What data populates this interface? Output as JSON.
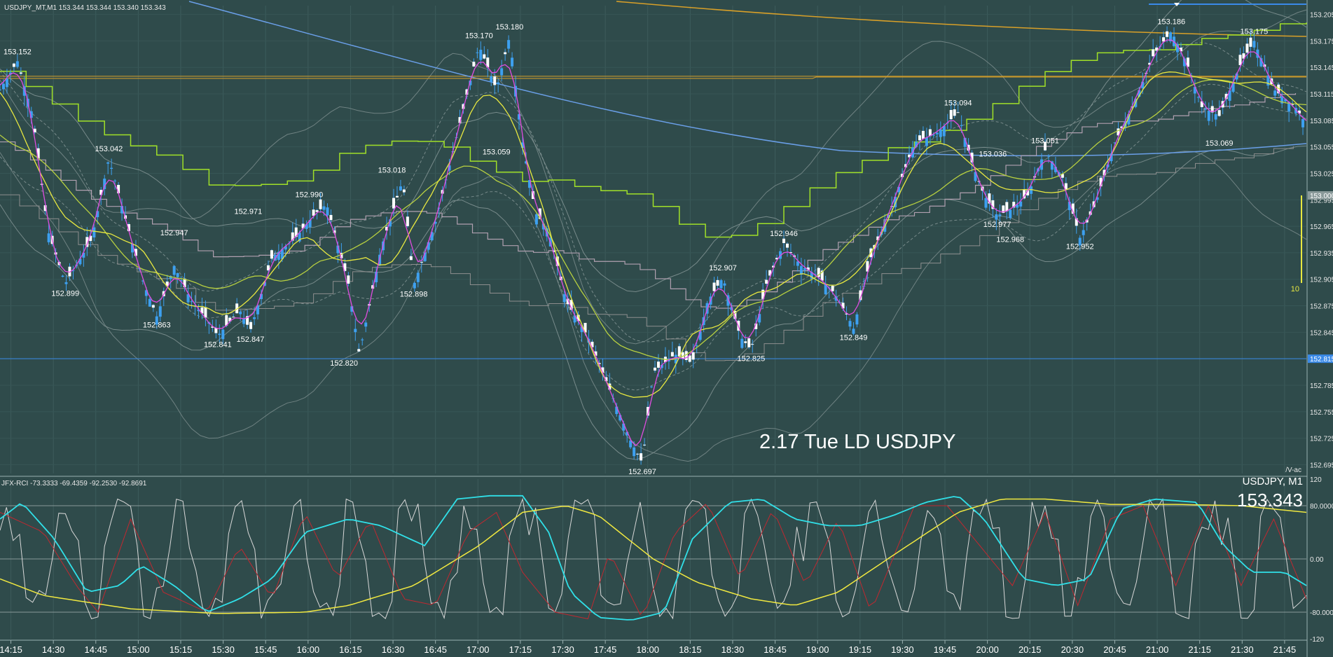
{
  "header": {
    "symbol_info": "USDJPY_MT,M1  153.344 153.344 153.340 153.343"
  },
  "watermark": "2.17 Tue LD USDJPY",
  "indicator": {
    "label": "JFX-RCI -73.3333 -69.4359 -92.2530 -92.8691",
    "symbol_tf": "USDJPY, M1",
    "last_price": "153.343",
    "small_tag": "/V-ac"
  },
  "price_tags": {
    "current": "153.000",
    "line": "152.815",
    "bar_count": "10"
  },
  "colors": {
    "background": "#2f4b4b",
    "candle": "#3da0f0",
    "ema_short": "#e04ce0",
    "ema_mid": "#000000",
    "ma_yellow": "#e8e840",
    "ma_olive": "#b8d040",
    "ma_blue": "#6a9fe8",
    "ma_orange": "#d9a028",
    "step_green": "#a0e028",
    "step_gray": "#b0a0b0",
    "band_gray": "#8a9a9a",
    "rci_white": "#d8d8d8",
    "rci_cyan": "#30e0e8",
    "rci_yellow": "#f0e840",
    "rci_red": "#c02830"
  },
  "chart_data": {
    "type": "candlestick",
    "title": "",
    "ylim": [
      152.685,
      153.215
    ],
    "y_ticks": [
      "153.205",
      "153.175",
      "153.145",
      "153.115",
      "153.085",
      "153.055",
      "153.025",
      "152.995",
      "152.965",
      "152.935",
      "152.905",
      "152.875",
      "152.845",
      "152.815",
      "152.785",
      "152.755",
      "152.725",
      "152.695"
    ],
    "x_ticks": [
      "14:15",
      "14:30",
      "14:45",
      "15:00",
      "15:15",
      "15:30",
      "15:45",
      "16:00",
      "16:15",
      "16:30",
      "16:45",
      "17:00",
      "17:15",
      "17:30",
      "17:45",
      "18:00",
      "18:15",
      "18:30",
      "18:45",
      "19:00",
      "19:15",
      "19:30",
      "19:45",
      "20:00",
      "20:15",
      "20:30",
      "20:45",
      "21:00",
      "21:15",
      "21:30",
      "21:45"
    ],
    "close_path": [
      [
        0,
        153.12
      ],
      [
        8,
        153.152
      ],
      [
        15,
        153.09
      ],
      [
        22,
        152.96
      ],
      [
        30,
        152.9
      ],
      [
        42,
        152.95
      ],
      [
        50,
        153.042
      ],
      [
        58,
        152.97
      ],
      [
        66,
        152.9
      ],
      [
        72,
        152.863
      ],
      [
        80,
        152.92
      ],
      [
        88,
        152.88
      ],
      [
        95,
        152.86
      ],
      [
        100,
        152.841
      ],
      [
        110,
        152.87
      ],
      [
        115,
        152.847
      ],
      [
        125,
        152.93
      ],
      [
        135,
        152.95
      ],
      [
        145,
        152.98
      ],
      [
        150,
        152.99
      ],
      [
        160,
        152.9
      ],
      [
        165,
        152.82
      ],
      [
        175,
        152.94
      ],
      [
        185,
        153.018
      ],
      [
        190,
        152.898
      ],
      [
        200,
        152.97
      ],
      [
        210,
        153.07
      ],
      [
        220,
        153.17
      ],
      [
        228,
        153.12
      ],
      [
        234,
        153.18
      ],
      [
        240,
        153.06
      ],
      [
        246,
        152.98
      ],
      [
        252,
        152.96
      ],
      [
        260,
        152.88
      ],
      [
        270,
        152.84
      ],
      [
        280,
        152.78
      ],
      [
        290,
        152.72
      ],
      [
        295,
        152.697
      ],
      [
        300,
        152.8
      ],
      [
        310,
        152.82
      ],
      [
        318,
        152.81
      ],
      [
        325,
        152.88
      ],
      [
        332,
        152.907
      ],
      [
        340,
        152.84
      ],
      [
        345,
        152.825
      ],
      [
        352,
        152.9
      ],
      [
        360,
        152.946
      ],
      [
        368,
        152.92
      ],
      [
        375,
        152.91
      ],
      [
        383,
        152.89
      ],
      [
        390,
        152.86
      ],
      [
        392,
        152.849
      ],
      [
        400,
        152.93
      ],
      [
        410,
        152.99
      ],
      [
        420,
        153.06
      ],
      [
        430,
        153.07
      ],
      [
        440,
        153.094
      ],
      [
        446,
        153.04
      ],
      [
        452,
        153.0
      ],
      [
        458,
        152.977
      ],
      [
        465,
        152.985
      ],
      [
        472,
        153.0
      ],
      [
        480,
        153.051
      ],
      [
        488,
        153.02
      ],
      [
        496,
        152.952
      ],
      [
        503,
        152.99
      ],
      [
        512,
        153.06
      ],
      [
        520,
        153.1
      ],
      [
        530,
        153.16
      ],
      [
        538,
        153.186
      ],
      [
        545,
        153.15
      ],
      [
        552,
        153.1
      ],
      [
        560,
        153.09
      ],
      [
        570,
        153.15
      ],
      [
        576,
        153.175
      ],
      [
        585,
        153.12
      ],
      [
        595,
        153.1
      ],
      [
        600,
        153.08
      ]
    ],
    "price_labels": [
      {
        "text": "153.152",
        "t": 8,
        "v": 153.152,
        "pos": "above"
      },
      {
        "text": "152.899",
        "t": 30,
        "v": 152.899,
        "pos": "below"
      },
      {
        "text": "153.042",
        "t": 50,
        "v": 153.042,
        "pos": "above"
      },
      {
        "text": "152.947",
        "t": 80,
        "v": 152.947,
        "pos": "above"
      },
      {
        "text": "152.863",
        "t": 72,
        "v": 152.863,
        "pos": "below"
      },
      {
        "text": "152.841",
        "t": 100,
        "v": 152.841,
        "pos": "below"
      },
      {
        "text": "152.971",
        "t": 114,
        "v": 152.971,
        "pos": "above"
      },
      {
        "text": "152.847",
        "t": 115,
        "v": 152.847,
        "pos": "below"
      },
      {
        "text": "152.990",
        "t": 142,
        "v": 152.99,
        "pos": "above"
      },
      {
        "text": "152.820",
        "t": 158,
        "v": 152.82,
        "pos": "below"
      },
      {
        "text": "153.018",
        "t": 180,
        "v": 153.018,
        "pos": "above"
      },
      {
        "text": "152.898",
        "t": 190,
        "v": 152.898,
        "pos": "below"
      },
      {
        "text": "153.170",
        "t": 220,
        "v": 153.17,
        "pos": "above"
      },
      {
        "text": "153.180",
        "t": 234,
        "v": 153.18,
        "pos": "above"
      },
      {
        "text": "153.059",
        "t": 228,
        "v": 153.059,
        "pos": "below"
      },
      {
        "text": "152.697",
        "t": 295,
        "v": 152.697,
        "pos": "below"
      },
      {
        "text": "152.907",
        "t": 332,
        "v": 152.907,
        "pos": "above"
      },
      {
        "text": "152.825",
        "t": 345,
        "v": 152.825,
        "pos": "below"
      },
      {
        "text": "152.946",
        "t": 360,
        "v": 152.946,
        "pos": "above"
      },
      {
        "text": "152.849",
        "t": 392,
        "v": 152.849,
        "pos": "below"
      },
      {
        "text": "153.094",
        "t": 440,
        "v": 153.094,
        "pos": "above"
      },
      {
        "text": "153.036",
        "t": 456,
        "v": 153.036,
        "pos": "above"
      },
      {
        "text": "152.977",
        "t": 458,
        "v": 152.977,
        "pos": "below"
      },
      {
        "text": "152.968",
        "t": 464,
        "v": 152.968,
        "pos": "below2"
      },
      {
        "text": "153.051",
        "t": 480,
        "v": 153.051,
        "pos": "above"
      },
      {
        "text": "152.952",
        "t": 496,
        "v": 152.952,
        "pos": "below"
      },
      {
        "text": "153.186",
        "t": 538,
        "v": 153.186,
        "pos": "above"
      },
      {
        "text": "153.175",
        "t": 576,
        "v": 153.175,
        "pos": "above"
      },
      {
        "text": "153.069",
        "t": 560,
        "v": 153.069,
        "pos": "below"
      }
    ],
    "horizontal_lines": [
      {
        "name": "orange-level",
        "v": 153.135,
        "color": "#d9a028"
      },
      {
        "name": "blue-level",
        "v": 152.815,
        "color": "#3a8ae8"
      }
    ],
    "indicator": {
      "name": "JFX-RCI",
      "ylim": [
        -120,
        120
      ],
      "y_ticks": [
        "120",
        "80.0000",
        "0.00",
        "-80.0000",
        "-120"
      ],
      "levels": [
        80,
        0,
        -80
      ],
      "series_yellow": [
        [
          0,
          -30
        ],
        [
          20,
          -55
        ],
        [
          60,
          -75
        ],
        [
          100,
          -82
        ],
        [
          140,
          -80
        ],
        [
          160,
          -70
        ],
        [
          190,
          -40
        ],
        [
          220,
          20
        ],
        [
          240,
          70
        ],
        [
          260,
          80
        ],
        [
          275,
          65
        ],
        [
          300,
          0
        ],
        [
          320,
          -35
        ],
        [
          345,
          -60
        ],
        [
          365,
          -70
        ],
        [
          385,
          -50
        ],
        [
          410,
          5
        ],
        [
          440,
          70
        ],
        [
          460,
          90
        ],
        [
          480,
          90
        ],
        [
          510,
          82
        ],
        [
          540,
          82
        ],
        [
          570,
          80
        ],
        [
          600,
          70
        ]
      ],
      "series_cyan": [
        [
          0,
          60
        ],
        [
          10,
          85
        ],
        [
          25,
          30
        ],
        [
          40,
          -50
        ],
        [
          55,
          -40
        ],
        [
          65,
          -10
        ],
        [
          80,
          -40
        ],
        [
          95,
          -80
        ],
        [
          110,
          -60
        ],
        [
          125,
          -30
        ],
        [
          140,
          40
        ],
        [
          160,
          60
        ],
        [
          175,
          50
        ],
        [
          195,
          20
        ],
        [
          210,
          90
        ],
        [
          225,
          95
        ],
        [
          240,
          95
        ],
        [
          252,
          40
        ],
        [
          262,
          -50
        ],
        [
          275,
          -88
        ],
        [
          290,
          -92
        ],
        [
          305,
          -80
        ],
        [
          318,
          30
        ],
        [
          335,
          85
        ],
        [
          350,
          90
        ],
        [
          365,
          60
        ],
        [
          380,
          50
        ],
        [
          395,
          50
        ],
        [
          410,
          65
        ],
        [
          425,
          85
        ],
        [
          440,
          95
        ],
        [
          452,
          60
        ],
        [
          470,
          -30
        ],
        [
          485,
          -40
        ],
        [
          500,
          -30
        ],
        [
          515,
          75
        ],
        [
          530,
          90
        ],
        [
          550,
          85
        ],
        [
          562,
          20
        ],
        [
          575,
          -20
        ],
        [
          590,
          -20
        ],
        [
          600,
          -40
        ]
      ],
      "series_red": [
        [
          0,
          70
        ],
        [
          20,
          40
        ],
        [
          35,
          -40
        ],
        [
          45,
          -80
        ],
        [
          60,
          60
        ],
        [
          75,
          -50
        ],
        [
          95,
          -80
        ],
        [
          110,
          20
        ],
        [
          125,
          -60
        ],
        [
          140,
          70
        ],
        [
          155,
          -30
        ],
        [
          170,
          60
        ],
        [
          185,
          -60
        ],
        [
          200,
          -70
        ],
        [
          215,
          40
        ],
        [
          228,
          70
        ],
        [
          240,
          -20
        ],
        [
          255,
          -80
        ],
        [
          270,
          -90
        ],
        [
          280,
          10
        ],
        [
          295,
          -90
        ],
        [
          310,
          40
        ],
        [
          325,
          85
        ],
        [
          340,
          -30
        ],
        [
          355,
          75
        ],
        [
          370,
          -40
        ],
        [
          385,
          60
        ],
        [
          400,
          -80
        ],
        [
          420,
          80
        ],
        [
          435,
          80
        ],
        [
          450,
          20
        ],
        [
          465,
          -40
        ],
        [
          480,
          70
        ],
        [
          495,
          -70
        ],
        [
          510,
          60
        ],
        [
          525,
          80
        ],
        [
          540,
          -40
        ],
        [
          555,
          80
        ],
        [
          570,
          -40
        ],
        [
          585,
          60
        ],
        [
          600,
          -60
        ]
      ]
    }
  }
}
